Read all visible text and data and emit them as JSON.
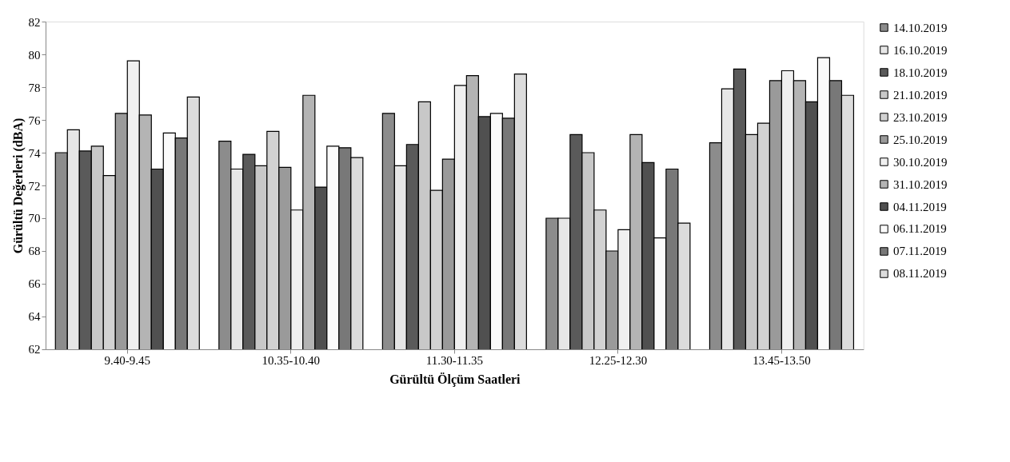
{
  "chart_data": {
    "type": "bar",
    "xlabel": "Gürültü Ölçüm Saatleri",
    "ylabel": "Gürültü Değerleri (dBA)",
    "categories": [
      "9.40-9.45",
      "10.35-10.40",
      "11.30-11.35",
      "12.25-12.30",
      "13.45-13.50"
    ],
    "ylim": [
      62,
      82
    ],
    "yticks": [
      62,
      64,
      66,
      68,
      70,
      72,
      74,
      76,
      78,
      80,
      82
    ],
    "grid": false,
    "legend": "right",
    "series": [
      {
        "name": "14.10.2019",
        "color": "#8c8c8c",
        "values": [
          74.0,
          74.7,
          76.4,
          70.0,
          74.6
        ]
      },
      {
        "name": "16.10.2019",
        "color": "#e6e6e6",
        "values": [
          75.4,
          73.0,
          73.2,
          70.0,
          77.9
        ]
      },
      {
        "name": "18.10.2019",
        "color": "#5a5a5a",
        "values": [
          74.1,
          73.9,
          74.5,
          75.1,
          79.1
        ]
      },
      {
        "name": "21.10.2019",
        "color": "#c8c8c8",
        "values": [
          74.4,
          73.2,
          77.1,
          74.0,
          75.1
        ]
      },
      {
        "name": "23.10.2019",
        "color": "#d2d2d2",
        "values": [
          72.6,
          75.3,
          71.7,
          70.5,
          75.8
        ]
      },
      {
        "name": "25.10.2019",
        "color": "#9a9a9a",
        "values": [
          76.4,
          73.1,
          73.6,
          68.0,
          78.4
        ]
      },
      {
        "name": "30.10.2019",
        "color": "#f0f0f0",
        "values": [
          79.6,
          70.5,
          78.1,
          69.3,
          79.0
        ]
      },
      {
        "name": "31.10.2019",
        "color": "#b4b4b4",
        "values": [
          76.3,
          77.5,
          78.7,
          75.1,
          78.4
        ]
      },
      {
        "name": "04.11.2019",
        "color": "#505050",
        "values": [
          73.0,
          71.9,
          76.2,
          73.4,
          77.1
        ]
      },
      {
        "name": "06.11.2019",
        "color": "#fafafa",
        "values": [
          75.2,
          74.4,
          76.4,
          68.8,
          79.8
        ]
      },
      {
        "name": "07.11.2019",
        "color": "#787878",
        "values": [
          74.9,
          74.3,
          76.1,
          73.0,
          78.4
        ]
      },
      {
        "name": "08.11.2019",
        "color": "#dcdcdc",
        "values": [
          77.4,
          73.7,
          78.8,
          69.7,
          77.5
        ]
      }
    ]
  }
}
